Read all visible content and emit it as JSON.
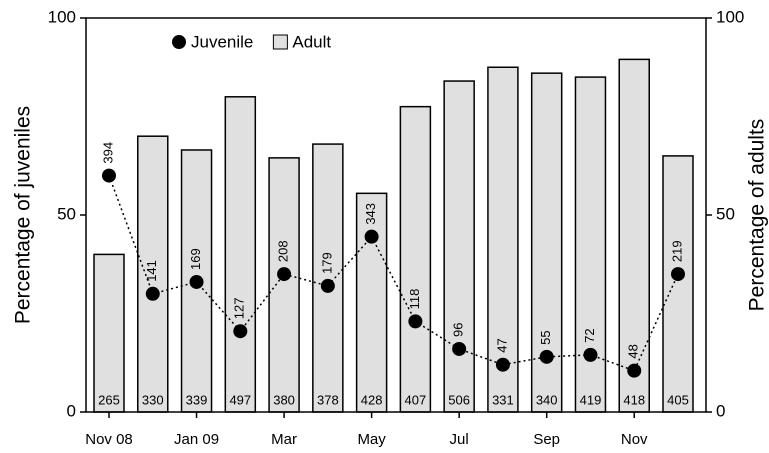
{
  "chart_data": {
    "type": "bar+line",
    "categories": [
      "Nov 08",
      null,
      "Jan 09",
      null,
      "Mar",
      null,
      "May",
      null,
      "Jul",
      null,
      "Sep",
      null,
      "Nov",
      null
    ],
    "series": [
      {
        "name": "Adult",
        "type": "bar",
        "axis": "y2",
        "color": "#e0e0e0",
        "values": [
          40,
          70,
          66.5,
          80,
          64.5,
          68,
          55.5,
          77.5,
          84,
          87.5,
          86,
          85,
          89.5,
          65
        ],
        "sample_sizes": [
          "265",
          "330",
          "339",
          "497",
          "380",
          "378",
          "428",
          "407",
          "506",
          "331",
          "340",
          "419",
          "418",
          "405"
        ]
      },
      {
        "name": "Juvenile",
        "type": "line",
        "axis": "y",
        "color": "#000000",
        "values": [
          60,
          30,
          33,
          20.5,
          35,
          32,
          44.5,
          23,
          16,
          12,
          14,
          14.5,
          10.5,
          35
        ],
        "sample_sizes": [
          "394",
          "141",
          "169",
          "127",
          "208",
          "179",
          "343",
          "118",
          "96",
          "47",
          "55",
          "72",
          "48",
          "219"
        ]
      }
    ],
    "y_label": "Percentage of juveniles",
    "y2_label": "Percentage of adults",
    "ylim": [
      0,
      100
    ],
    "yticks": [
      0,
      50,
      100
    ],
    "y2lim": [
      0,
      100
    ],
    "y2ticks": [
      0,
      50,
      100
    ],
    "grid": false,
    "legend": "top-left"
  }
}
